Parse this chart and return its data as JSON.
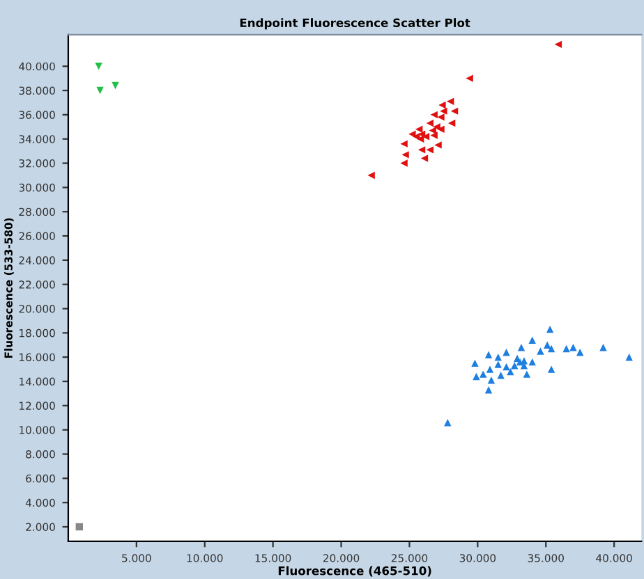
{
  "chart_data": {
    "type": "scatter",
    "title": "Endpoint Fluorescence Scatter Plot",
    "xlabel": "Fluorescence (465-510)",
    "ylabel": "Fluorescence (533-580)",
    "xlim": [
      0,
      42000
    ],
    "ylim": [
      800,
      42600
    ],
    "xticks": [
      {
        "value": 5000,
        "label": "5.000"
      },
      {
        "value": 10000,
        "label": "10.000"
      },
      {
        "value": 15000,
        "label": "15.000"
      },
      {
        "value": 20000,
        "label": "20.000"
      },
      {
        "value": 25000,
        "label": "25.000"
      },
      {
        "value": 30000,
        "label": "30.000"
      },
      {
        "value": 35000,
        "label": "35.000"
      },
      {
        "value": 40000,
        "label": "40.000"
      }
    ],
    "yticks": [
      {
        "value": 2000,
        "label": "2.000"
      },
      {
        "value": 4000,
        "label": "4.000"
      },
      {
        "value": 6000,
        "label": "6.000"
      },
      {
        "value": 8000,
        "label": "8.000"
      },
      {
        "value": 10000,
        "label": "10.000"
      },
      {
        "value": 12000,
        "label": "12.000"
      },
      {
        "value": 14000,
        "label": "14.000"
      },
      {
        "value": 16000,
        "label": "16.000"
      },
      {
        "value": 18000,
        "label": "18.000"
      },
      {
        "value": 20000,
        "label": "20.000"
      },
      {
        "value": 22000,
        "label": "22.000"
      },
      {
        "value": 24000,
        "label": "24.000"
      },
      {
        "value": 26000,
        "label": "26.000"
      },
      {
        "value": 28000,
        "label": "28.000"
      },
      {
        "value": 30000,
        "label": "30.000"
      },
      {
        "value": 32000,
        "label": "32.000"
      },
      {
        "value": 34000,
        "label": "34.000"
      },
      {
        "value": 36000,
        "label": "36.000"
      },
      {
        "value": 38000,
        "label": "38.000"
      },
      {
        "value": 40000,
        "label": "40.000"
      }
    ],
    "grid": false,
    "legend": false,
    "series": [
      {
        "color": "#22c04a",
        "marker": "triangle_down",
        "x": [
          2230,
          2330,
          3450
        ],
        "values": [
          40000,
          38000,
          38400
        ]
      },
      {
        "color": "#e01010",
        "marker": "triangle_left",
        "x": [
          35900,
          29400,
          22200,
          28000,
          27400,
          27500,
          28300,
          26800,
          27300,
          26500,
          28100,
          27000,
          27300,
          26700,
          25700,
          25900,
          25200,
          25500,
          26200,
          26800,
          25800,
          24600,
          27100,
          25900,
          26500,
          24700,
          26100,
          24600
        ],
        "values": [
          41800,
          39000,
          31000,
          37100,
          36800,
          36300,
          36300,
          36000,
          35800,
          35300,
          35300,
          35000,
          34800,
          34700,
          34800,
          34400,
          34400,
          34200,
          34200,
          34300,
          34000,
          33600,
          33500,
          33100,
          33100,
          32700,
          32400,
          32000
        ]
      },
      {
        "color": "#1e7fe0",
        "marker": "triangle",
        "x": [
          35300,
          34000,
          35100,
          35400,
          34600,
          36500,
          37000,
          37500,
          39200,
          41100,
          33200,
          32100,
          30800,
          31500,
          29800,
          32900,
          33400,
          33100,
          34000,
          31500,
          32100,
          32700,
          33400,
          30900,
          32400,
          30400,
          31700,
          29900,
          33600,
          35400,
          31000,
          30800,
          27800
        ],
        "values": [
          18300,
          17400,
          17000,
          16700,
          16500,
          16700,
          16800,
          16400,
          16800,
          16000,
          16800,
          16400,
          16200,
          16000,
          15500,
          15900,
          15700,
          15600,
          15600,
          15400,
          15200,
          15300,
          15300,
          15000,
          14800,
          14600,
          14500,
          14400,
          14600,
          15000,
          14100,
          13300,
          10600
        ]
      },
      {
        "color": "#888888",
        "marker": "square",
        "x": [
          810
        ],
        "values": [
          2000
        ]
      }
    ]
  }
}
